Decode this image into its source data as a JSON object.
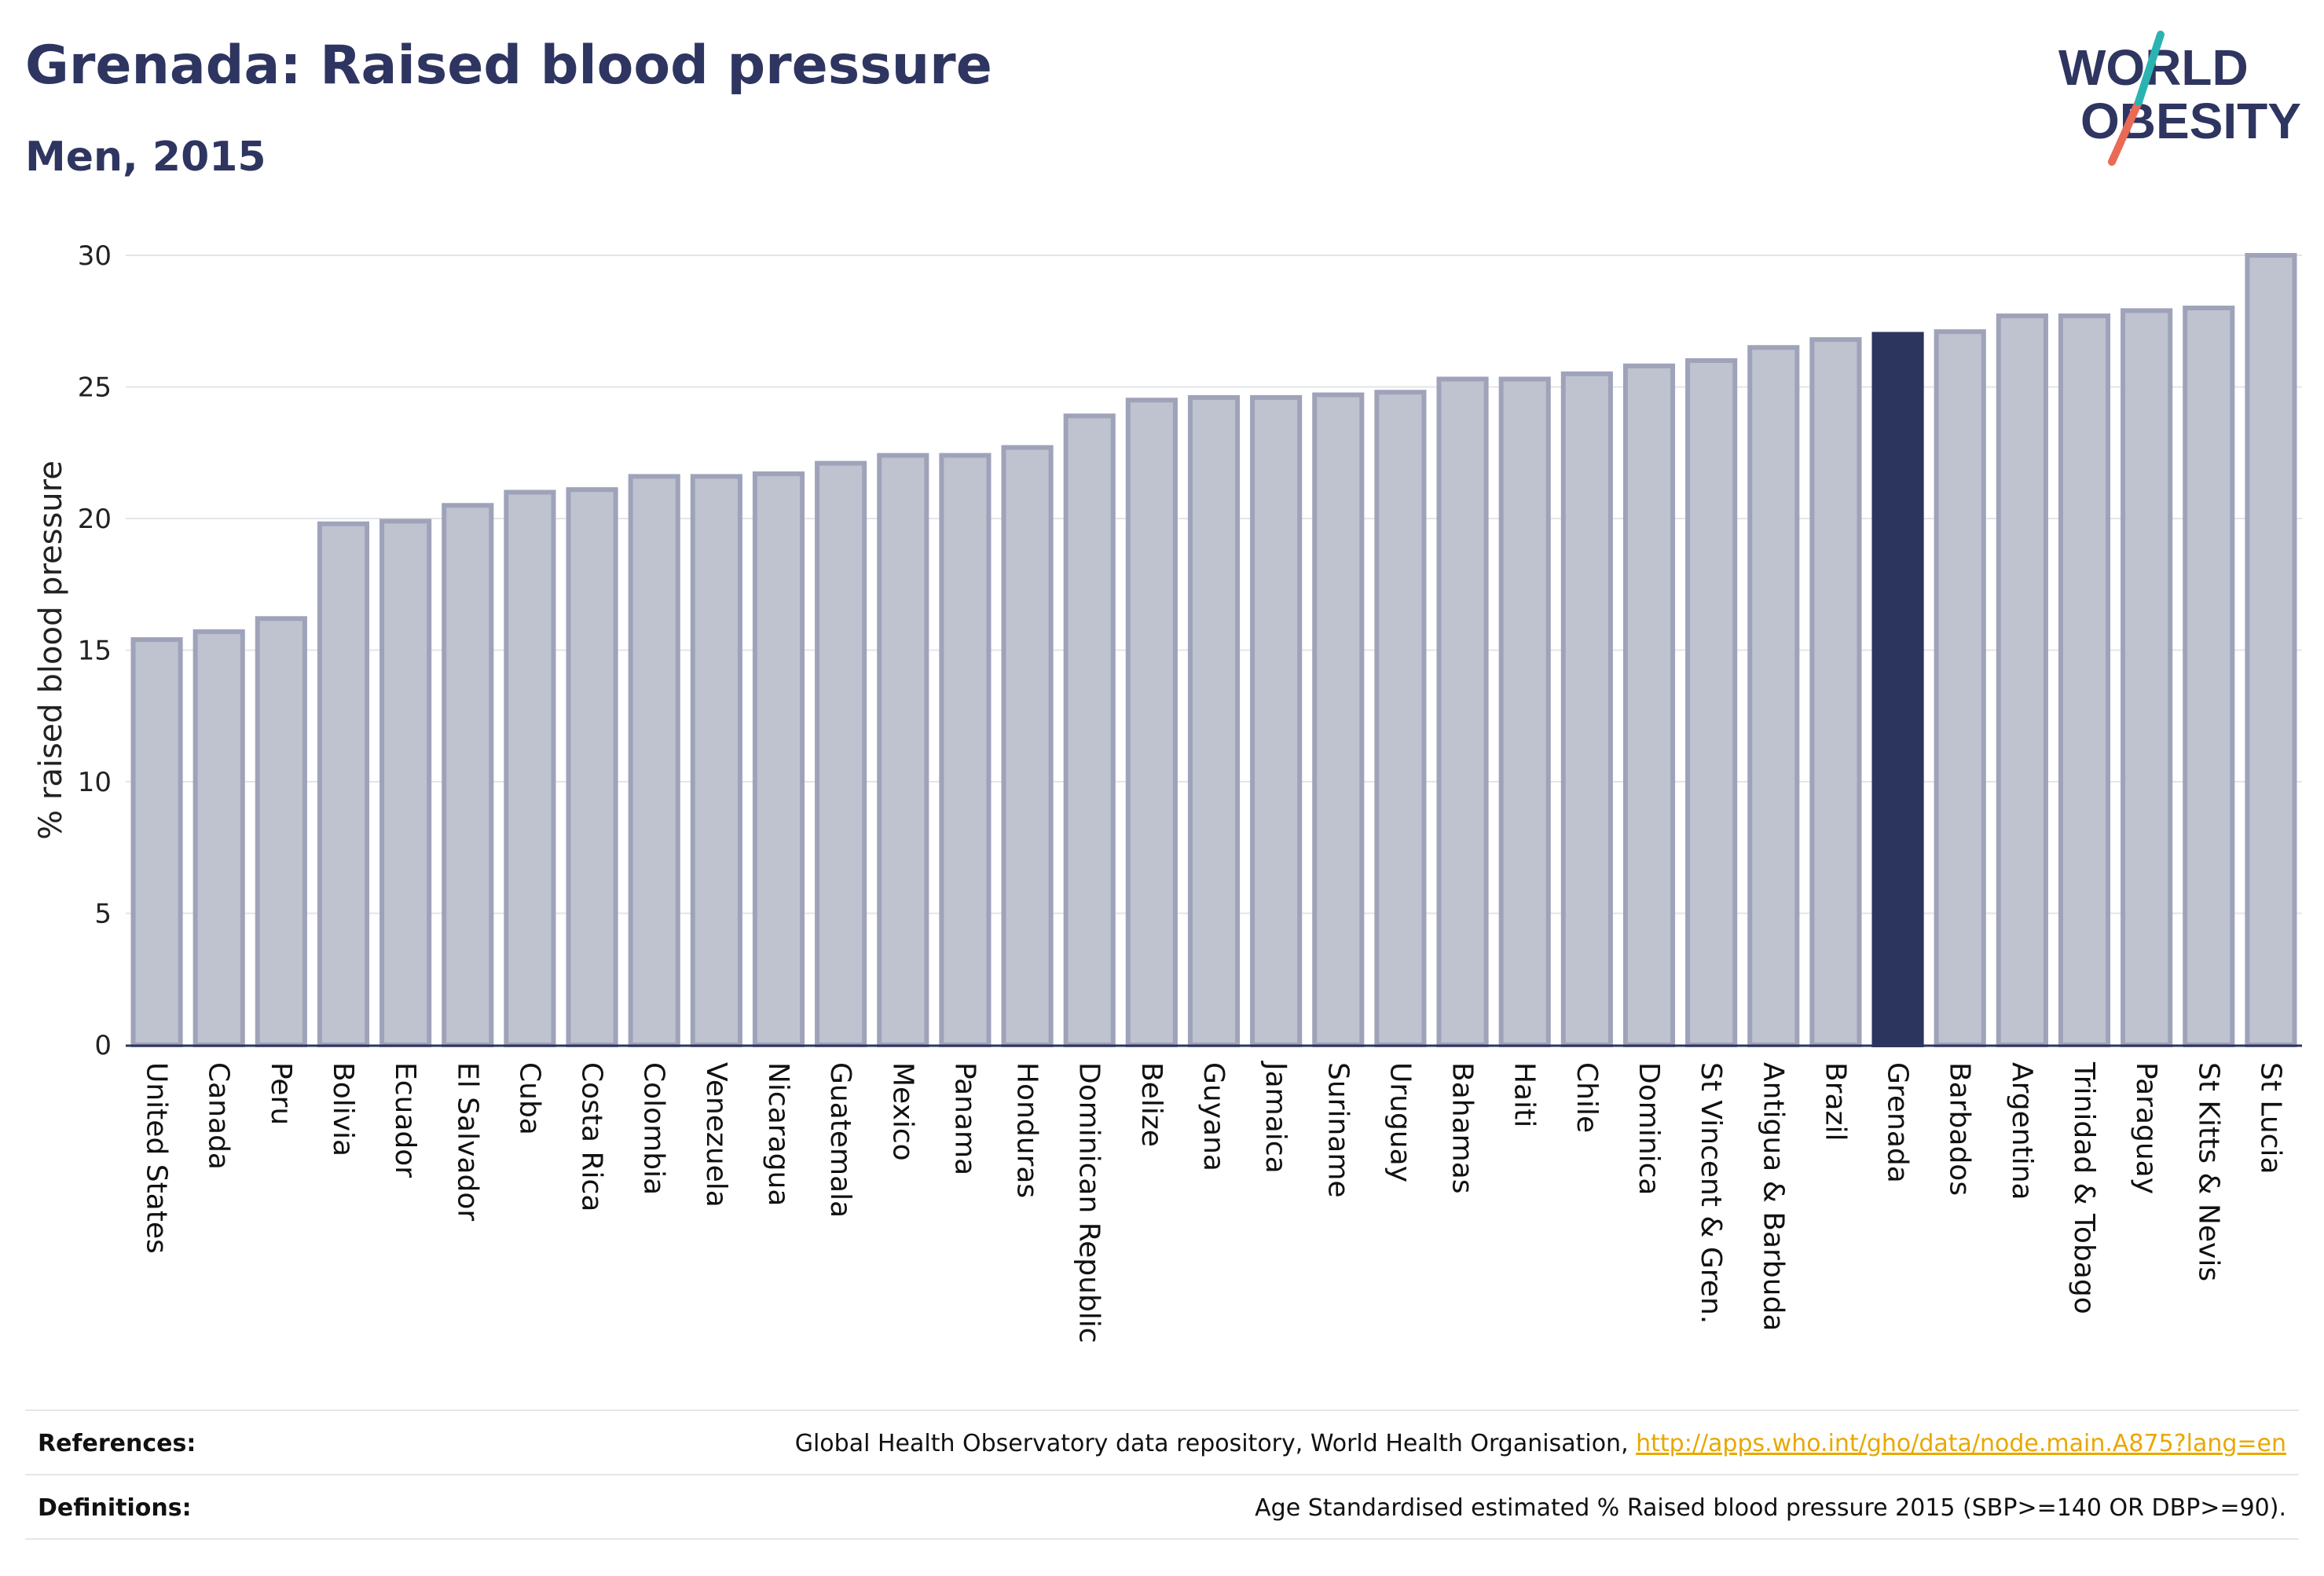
{
  "header": {
    "title": "Grenada: Raised blood pressure",
    "subtitle": "Men, 2015"
  },
  "logo": {
    "line1": "WORLD",
    "line2": "OBESITY"
  },
  "colors": {
    "bar_default": "#bfc2cf",
    "bar_stroke": "#9fa3b9",
    "bar_highlight": "#2c355e",
    "title": "#2e3560",
    "logo_teal": "#2bb3b1",
    "logo_coral": "#ea6b55",
    "link": "#e8a800"
  },
  "chart_data": {
    "type": "bar",
    "categories": [
      "United States",
      "Canada",
      "Peru",
      "Bolivia",
      "Ecuador",
      "El Salvador",
      "Cuba",
      "Costa Rica",
      "Colombia",
      "Venezuela",
      "Nicaragua",
      "Guatemala",
      "Mexico",
      "Panama",
      "Honduras",
      "Dominican Republic",
      "Belize",
      "Guyana",
      "Jamaica",
      "Suriname",
      "Uruguay",
      "Bahamas",
      "Haiti",
      "Chile",
      "Dominica",
      "St Vincent & Gren.",
      "Antigua & Barbuda",
      "Brazil",
      "Grenada",
      "Barbados",
      "Argentina",
      "Trinidad & Tobago",
      "Paraguay",
      "St Kitts & Nevis",
      "St Lucia"
    ],
    "values": [
      15.4,
      15.7,
      16.2,
      19.8,
      19.9,
      20.5,
      21.0,
      21.1,
      21.6,
      21.6,
      21.7,
      22.1,
      22.4,
      22.4,
      22.7,
      23.9,
      24.5,
      24.6,
      24.6,
      24.7,
      24.8,
      25.3,
      25.3,
      25.5,
      25.8,
      26.0,
      26.5,
      26.8,
      27.0,
      27.1,
      27.7,
      27.7,
      27.9,
      28.0,
      30.0
    ],
    "highlight": "Grenada",
    "ylabel": "% raised blood pressure",
    "ylim": [
      0,
      30
    ],
    "yticks": [
      0,
      5,
      10,
      15,
      20,
      25,
      30
    ],
    "grid": true
  },
  "footer": {
    "references_label": "References:",
    "references_text": "Global Health Observatory data repository, World Health Organisation, ",
    "references_link": "http://apps.who.int/gho/data/node.main.A875?lang=en",
    "definitions_label": "Definitions:",
    "definitions_text": "Age Standardised estimated % Raised blood pressure 2015 (SBP>=140 OR DBP>=90)."
  }
}
